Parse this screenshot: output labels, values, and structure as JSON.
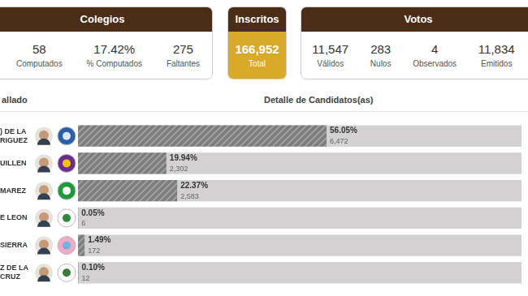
{
  "panels": [
    {
      "title": "Colegios",
      "items": [
        {
          "value": "58",
          "label": "Computados"
        },
        {
          "value": "17.42%",
          "label": "% Computados"
        },
        {
          "value": "275",
          "label": "Faltantes"
        }
      ]
    },
    {
      "title": "Inscritos",
      "items": [
        {
          "value": "166,952",
          "label": "Total"
        }
      ]
    },
    {
      "title": "Votos",
      "items": [
        {
          "value": "11,547",
          "label": "Válidos"
        },
        {
          "value": "283",
          "label": "Nulos"
        },
        {
          "value": "4",
          "label": "Observados"
        },
        {
          "value": "11,834",
          "label": "Emitidos"
        }
      ]
    }
  ],
  "table_header": [
    "allado",
    "Detalle de Candidatos(as)"
  ],
  "chart_data": {
    "type": "bar",
    "orientation": "horizontal",
    "categories": [
      ") DE LA\nRIGUEZ",
      "UILLEN",
      "MAREZ",
      "E LEON",
      "SIERRA",
      "Z DE LA\nCRUZ"
    ],
    "values": [
      56.05,
      19.94,
      22.37,
      0.05,
      1.49,
      0.1
    ],
    "value_labels": [
      "56.05%",
      "19.94%",
      "22.37%",
      "0.05%",
      "1.49%",
      "0.10%"
    ],
    "votes": [
      6472,
      2302,
      2583,
      6,
      172,
      12
    ],
    "vote_labels": [
      "6,472",
      "2,302",
      "2,583",
      "6",
      "172",
      "12"
    ],
    "color": "#7c7c7c",
    "xlim": [
      0,
      100
    ],
    "grid": false,
    "tick_labels": "y",
    "data_labels": true
  }
}
